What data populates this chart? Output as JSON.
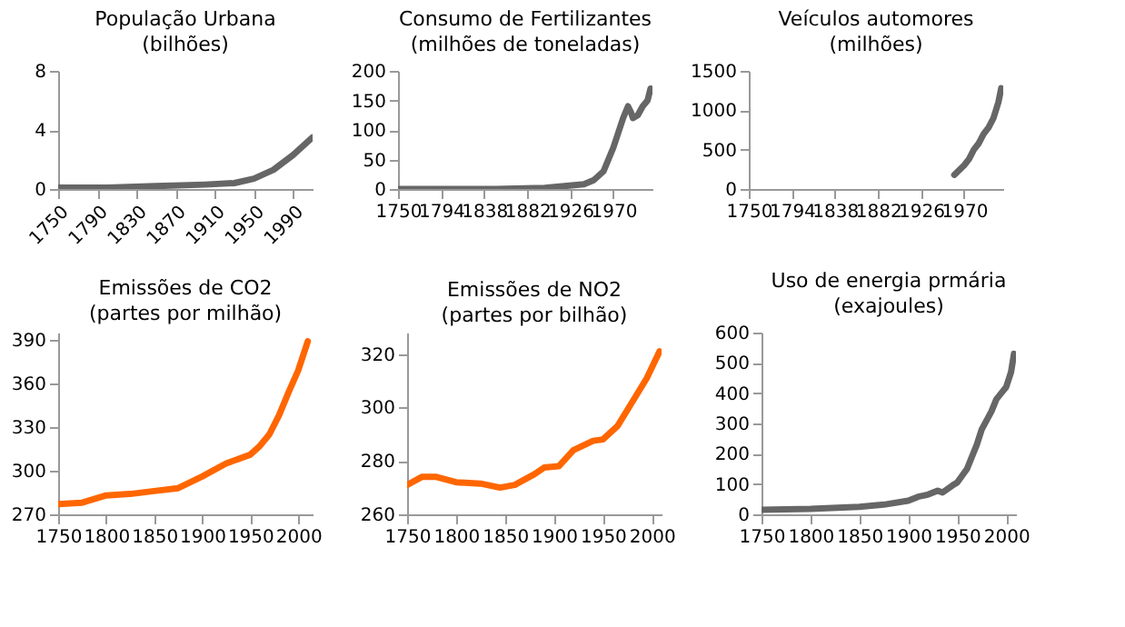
{
  "chart_data": [
    {
      "type": "line",
      "title": "População Urbana",
      "subtitle": "(bilhões)",
      "xlim": [
        1750,
        2010
      ],
      "xticks": [
        1750,
        1790,
        1830,
        1870,
        1910,
        1950,
        1990
      ],
      "ylim": [
        0,
        8
      ],
      "yticks": [
        0,
        4,
        8
      ],
      "series": [
        {
          "color": "#666666",
          "x": [
            1750,
            1800,
            1850,
            1900,
            1930,
            1950,
            1970,
            1990,
            2010
          ],
          "values": [
            0.1,
            0.1,
            0.2,
            0.3,
            0.4,
            0.7,
            1.3,
            2.3,
            3.5
          ]
        }
      ]
    },
    {
      "type": "line",
      "title": "Consumo de Fertilizantes",
      "subtitle": "(milhões de toneladas)",
      "xlim": [
        1750,
        2010
      ],
      "xticks": [
        1750,
        1794,
        1838,
        1882,
        1926,
        1970
      ],
      "ylim": [
        0,
        200
      ],
      "yticks": [
        0,
        50,
        100,
        150,
        200
      ],
      "series": [
        {
          "color": "#666666",
          "x": [
            1750,
            1850,
            1900,
            1920,
            1940,
            1950,
            1960,
            1970,
            1980,
            1985,
            1988,
            1990,
            1995,
            2000,
            2005,
            2008
          ],
          "values": [
            0,
            0,
            2,
            5,
            8,
            15,
            30,
            70,
            120,
            140,
            130,
            120,
            125,
            140,
            150,
            170
          ]
        }
      ]
    },
    {
      "type": "line",
      "title": "Veículos automores",
      "subtitle": "(milhões)",
      "xlim": [
        1750,
        2010
      ],
      "xticks": [
        1750,
        1794,
        1838,
        1882,
        1926,
        1970
      ],
      "ylim": [
        0,
        1500
      ],
      "yticks": [
        0,
        500,
        1000,
        1500
      ],
      "series": [
        {
          "color": "#666666",
          "x": [
            1960,
            1970,
            1975,
            1980,
            1985,
            1990,
            1995,
            2000,
            2005,
            2008
          ],
          "values": [
            180,
            300,
            380,
            500,
            580,
            700,
            780,
            900,
            1100,
            1280
          ]
        }
      ]
    },
    {
      "type": "line",
      "title": "Emissões de CO2",
      "subtitle": "(partes por milhão)",
      "xlim": [
        1750,
        2015
      ],
      "xticks": [
        1750,
        1800,
        1850,
        1900,
        1950,
        2000
      ],
      "ylim": [
        270,
        395
      ],
      "yticks": [
        270,
        300,
        330,
        360,
        390
      ],
      "series": [
        {
          "color": "#ff6600",
          "x": [
            1750,
            1775,
            1800,
            1825,
            1850,
            1875,
            1900,
            1925,
            1950,
            1960,
            1970,
            1980,
            1990,
            2000,
            2010
          ],
          "values": [
            277,
            278,
            283,
            284,
            286,
            288,
            296,
            305,
            311,
            317,
            325,
            338,
            354,
            369,
            389
          ]
        }
      ]
    },
    {
      "type": "line",
      "title": "Emissões de NO2",
      "subtitle": "(partes por bilhão)",
      "xlim": [
        1750,
        2010
      ],
      "xticks": [
        1750,
        1800,
        1850,
        1900,
        1950,
        2000
      ],
      "ylim": [
        260,
        328
      ],
      "yticks": [
        260,
        280,
        300,
        320
      ],
      "series": [
        {
          "color": "#ff6600",
          "x": [
            1750,
            1765,
            1780,
            1800,
            1825,
            1845,
            1860,
            1880,
            1890,
            1905,
            1920,
            1940,
            1950,
            1965,
            1980,
            1995,
            2008
          ],
          "values": [
            271,
            274,
            274,
            272,
            271.5,
            270,
            271,
            275,
            277.5,
            278,
            284,
            287.5,
            288,
            293,
            302,
            311,
            321
          ]
        }
      ]
    },
    {
      "type": "line",
      "title": "Uso de energia prmária",
      "subtitle": "(exajoules)",
      "xlim": [
        1750,
        2010
      ],
      "xticks": [
        1750,
        1800,
        1850,
        1900,
        1950,
        2000
      ],
      "ylim": [
        0,
        600
      ],
      "yticks": [
        0,
        100,
        200,
        300,
        400,
        500,
        600
      ],
      "series": [
        {
          "color": "#666666",
          "x": [
            1750,
            1800,
            1850,
            1875,
            1900,
            1910,
            1920,
            1930,
            1935,
            1945,
            1950,
            1960,
            1970,
            1975,
            1980,
            1985,
            1990,
            1995,
            2000,
            2005,
            2008
          ],
          "values": [
            15,
            18,
            25,
            32,
            45,
            58,
            65,
            78,
            72,
            95,
            105,
            150,
            230,
            280,
            310,
            340,
            380,
            400,
            420,
            470,
            530
          ]
        }
      ]
    }
  ]
}
